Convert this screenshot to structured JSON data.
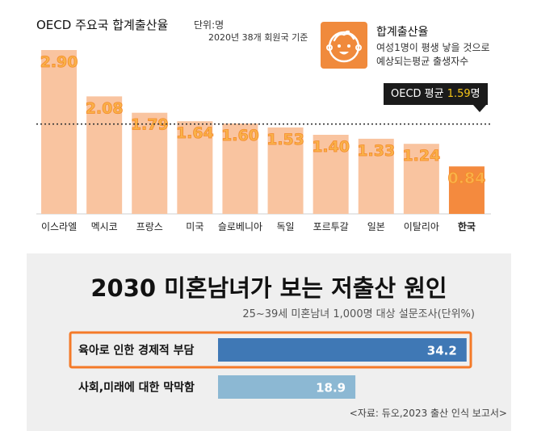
{
  "header": {
    "title": "OECD 주요국 합계출산율",
    "unit": "단위:명",
    "note": "2020년 38개 회원국 기준"
  },
  "legend": {
    "title": "합계출산율",
    "desc_line1": "여성1명이 평생 낳을 것으로",
    "desc_line2": "예상되는평균 출생자수",
    "icon": "baby-face-icon"
  },
  "average": {
    "prefix": "OECD 평균 ",
    "value": "1.59",
    "suffix": "명"
  },
  "colors": {
    "bar": "#f9c4a0",
    "bar_highlight": "#f48a3e",
    "label_fill": "#f9b24a",
    "label_stroke": "#f58a2a",
    "hbar_primary": "#3f78b5",
    "hbar_secondary": "#8cb8d3",
    "highlight_frame": "#f47a28"
  },
  "chart_data": [
    {
      "type": "bar",
      "title": "OECD 주요국 합계출산율",
      "categories": [
        "이스라엘",
        "멕시코",
        "프랑스",
        "미국",
        "슬로베니아",
        "독일",
        "포르투갈",
        "일본",
        "이탈리아",
        "한국"
      ],
      "values": [
        2.9,
        2.08,
        1.79,
        1.64,
        1.6,
        1.53,
        1.4,
        1.33,
        1.24,
        0.84
      ],
      "value_labels": [
        "2.90",
        "2.08",
        "1.79",
        "1.64",
        "1.60",
        "1.53",
        "1.40",
        "1.33",
        "1.24",
        "0.84"
      ],
      "highlight": "한국",
      "reference_line": 1.59,
      "ylim": [
        0,
        2.9
      ],
      "grid": false
    },
    {
      "type": "bar",
      "orientation": "horizontal",
      "title": "2030 미혼남녀가 보는 저출산 원인",
      "subtitle": "25~39세 미혼남녀 1,000명 대상 설문조사(단위%)",
      "categories": [
        "육아로 인한 경제적 부담",
        "사회,미래에 대한 막막함"
      ],
      "values": [
        34.2,
        18.9
      ],
      "value_labels": [
        "34.2",
        "18.9"
      ],
      "highlight": "육아로 인한 경제적 부담",
      "grid": false
    }
  ],
  "bottom": {
    "title": "2030 미혼남녀가 보는 저출산 원인",
    "subtitle": "25~39세 미혼남녀 1,000명 대상 설문조사(단위%)",
    "source": "<자료: 듀오,2023 출산 인식 보고서>"
  }
}
